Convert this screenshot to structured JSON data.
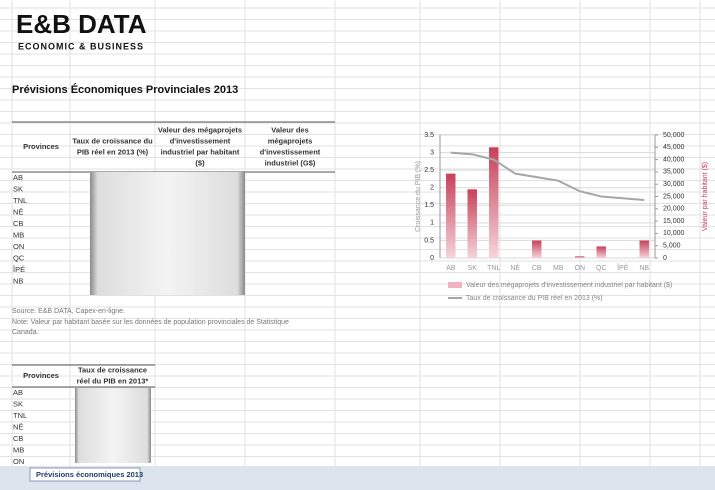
{
  "logo": {
    "brand": "E&B DATA",
    "tagline": "ECONOMIC & BUSINESS"
  },
  "title": "Prévisions Économiques Provinciales 2013",
  "table1": {
    "headers": [
      [
        "Provinces"
      ],
      [
        "Taux de croissance du",
        "PIB réel en 2013 (%)"
      ],
      [
        "Valeur des mégaprojets",
        "d'investissement",
        "industriel par habitant",
        "($)"
      ],
      [
        "Valeur des",
        "mégaprojets",
        "d'investissement",
        "industriel (G$)"
      ]
    ],
    "rows": [
      "AB",
      "SK",
      "TNL",
      "NÉ",
      "CB",
      "MB",
      "ON",
      "QC",
      "ÎPÉ",
      "NB"
    ]
  },
  "source": "Source: E&B DATA, Capex-en-ligne.",
  "note": [
    "Note: Valeur par habitant basée sur les données de population provinciales de Statistique",
    "Canada."
  ],
  "table2": {
    "headers": [
      [
        "Provinces"
      ],
      [
        "Taux de croissance",
        "réel du PIB en 2013*"
      ]
    ],
    "rows": [
      "AB",
      "SK",
      "TNL",
      "NÉ",
      "CB",
      "MB",
      "ON"
    ]
  },
  "sheet_tab": "Prévisions économiques 2013",
  "chart": {
    "type": "bar_line",
    "categories": [
      "AB",
      "SK",
      "TNL",
      "NÉ",
      "CB",
      "MB",
      "ON",
      "QC",
      "ÎPÉ",
      "NB"
    ],
    "series": [
      {
        "name": "Valeur des mégaprojets d'investissement industriel par habitant ($)",
        "color": "#c8405a",
        "axis": "y2",
        "values": [
          34300,
          27900,
          45000,
          0,
          7100,
          0,
          700,
          4700,
          0,
          7100
        ]
      },
      {
        "name": "Taux de croissance du PIB réel en 2013 (%)",
        "color": "#a6a6a6",
        "values": [
          3.0,
          2.95,
          2.8,
          2.4,
          2.3,
          2.2,
          1.9,
          1.75,
          1.7,
          1.65
        ]
      }
    ],
    "ylabel": "Croissance du PIB (%)",
    "y2label": "Valeur par habitant ($)",
    "ylim": [
      0,
      3.5
    ],
    "yticks": [
      0,
      0.5,
      1,
      1.5,
      2,
      2.5,
      3,
      3.5
    ],
    "y2lim": [
      0,
      50000
    ],
    "y2ticks": [
      0,
      {
        "value": 5000,
        "label": "5,000"
      },
      {
        "value": 10000,
        "label": "10,000"
      },
      {
        "value": 15000,
        "label": "15,000"
      },
      {
        "value": 20000,
        "label": "20,000"
      },
      {
        "value": 25000,
        "label": "25,000"
      },
      {
        "value": 30000,
        "label": "30,000"
      },
      {
        "value": 35000,
        "label": "35,000"
      },
      {
        "value": 40000,
        "label": "40,000"
      },
      {
        "value": 45000,
        "label": "45,000"
      },
      {
        "value": 50000,
        "label": "50,000"
      }
    ],
    "grid": true
  }
}
